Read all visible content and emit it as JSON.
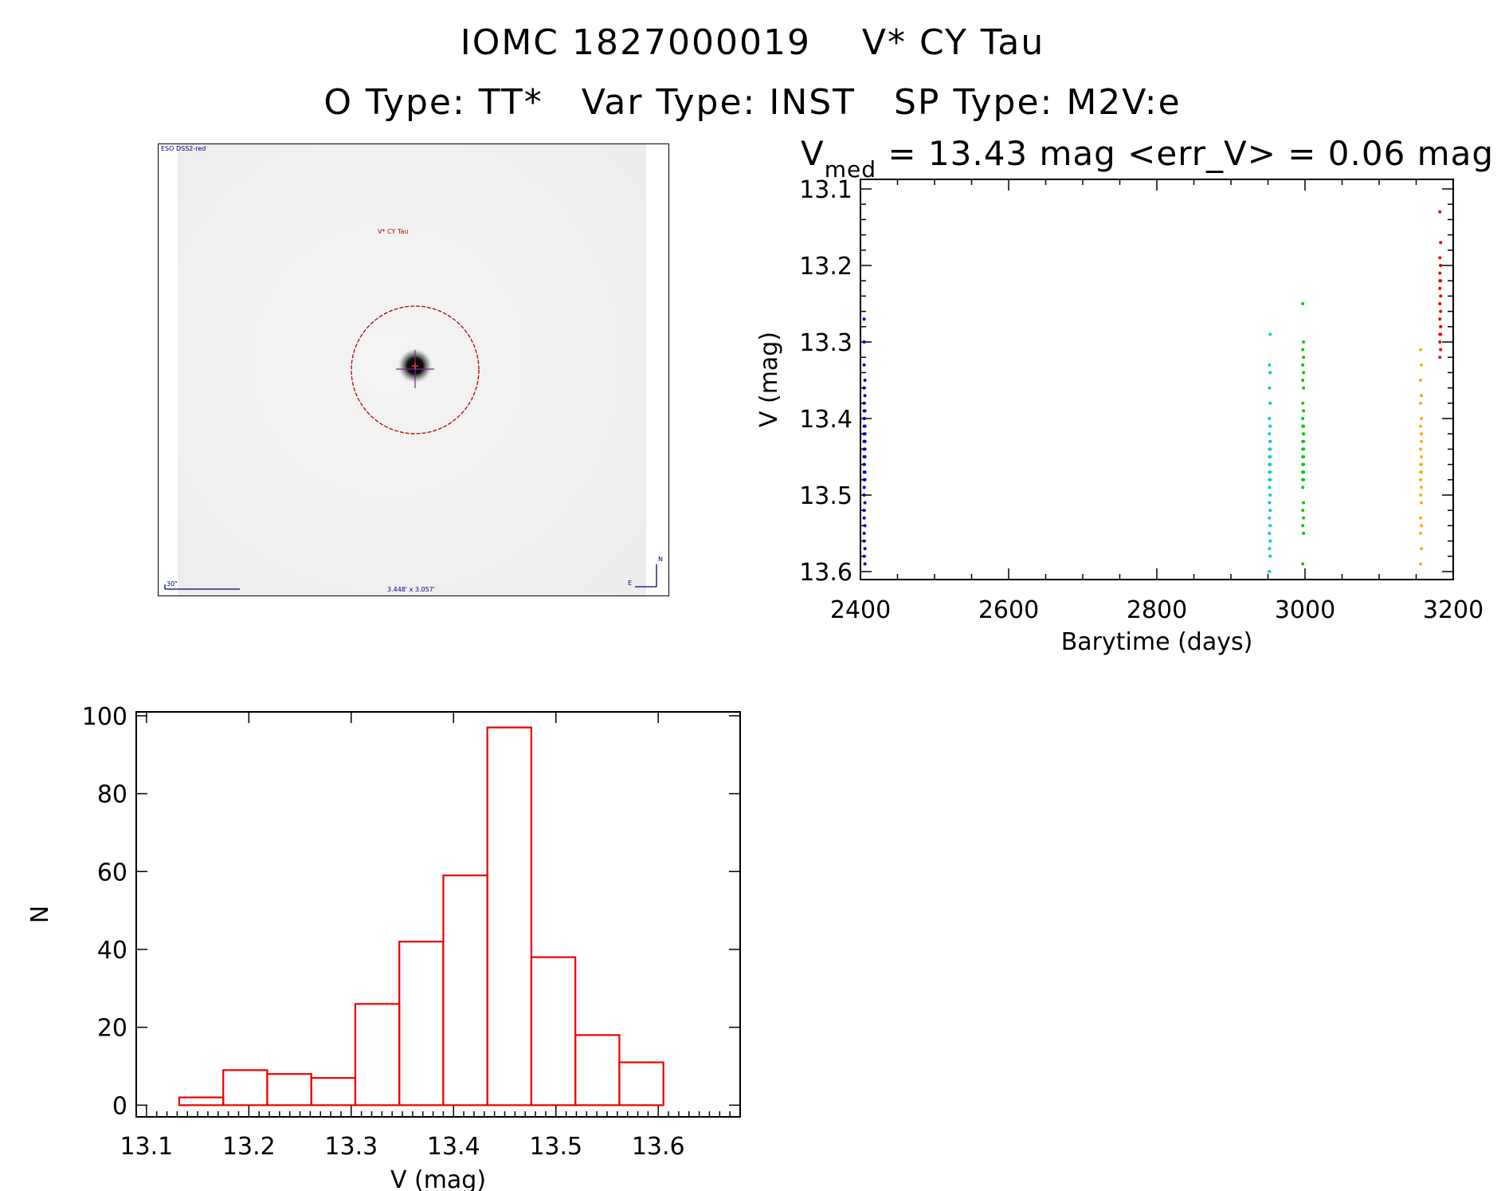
{
  "header": {
    "line1": "IOMC 1827000019    V* CY Tau",
    "line2": "O Type: TT*   Var Type: INST   SP Type: M2V:e"
  },
  "thumbnail": {
    "survey_label": "ESO DSS2-red",
    "object_label": "V* CY Tau",
    "scale_label": "30\"",
    "size_label": "3.448' x 3.057'",
    "compass_n": "N",
    "compass_e": "E",
    "circle_color": "#b00000",
    "crosshair_color": "#7a2a8a"
  },
  "chart_data": [
    {
      "type": "scatter",
      "title_prefix": "V",
      "title_sub": "med",
      "title_rest": " = 13.43 mag <err_V> = 0.06 mag",
      "xlabel": "Barytime (days)",
      "ylabel": "V (mag)",
      "xlim": [
        2400,
        3200
      ],
      "ylim": [
        13.6,
        13.1
      ],
      "y_inverted": true,
      "xticks": [
        "2400",
        "2600",
        "2800",
        "3000",
        "3200"
      ],
      "yticks": [
        "13.1",
        "13.2",
        "13.3",
        "13.4",
        "13.5",
        "13.6"
      ],
      "series": [
        {
          "color": "#0000cc",
          "x": [
            2405,
            2405,
            2405,
            2406,
            2405,
            2406,
            2405,
            2405,
            2406,
            2405,
            2405,
            2406,
            2405,
            2405,
            2406,
            2405,
            2406,
            2405,
            2405,
            2406,
            2405,
            2406,
            2405,
            2405,
            2406,
            2405,
            2405,
            2406,
            2405,
            2405,
            2406,
            2405,
            2405,
            2406,
            2405,
            2405,
            2406,
            2405,
            2406,
            2405
          ],
          "y": [
            13.27,
            13.3,
            13.33,
            13.35,
            13.36,
            13.37,
            13.38,
            13.39,
            13.39,
            13.4,
            13.4,
            13.41,
            13.41,
            13.42,
            13.42,
            13.43,
            13.43,
            13.43,
            13.44,
            13.44,
            13.45,
            13.45,
            13.46,
            13.46,
            13.47,
            13.47,
            13.48,
            13.48,
            13.49,
            13.5,
            13.51,
            13.52,
            13.53,
            13.54,
            13.55,
            13.56,
            13.57,
            13.58,
            13.59,
            13.45
          ]
        },
        {
          "color": "#00cccc",
          "x": [
            2953,
            2952,
            2953,
            2952,
            2953,
            2952,
            2953,
            2952,
            2953,
            2952,
            2953,
            2952,
            2953,
            2952,
            2953,
            2952,
            2953,
            2952,
            2953,
            2952,
            2953,
            2952,
            2953,
            2952,
            2953,
            2952,
            2953,
            2952,
            2953,
            2952,
            2953,
            2952
          ],
          "y": [
            13.29,
            13.33,
            13.34,
            13.36,
            13.38,
            13.4,
            13.41,
            13.42,
            13.43,
            13.44,
            13.44,
            13.45,
            13.45,
            13.46,
            13.46,
            13.47,
            13.47,
            13.48,
            13.48,
            13.49,
            13.5,
            13.51,
            13.52,
            13.53,
            13.54,
            13.55,
            13.56,
            13.57,
            13.58,
            13.6,
            13.43,
            13.46
          ]
        },
        {
          "color": "#00cc00",
          "x": [
            2997,
            2998,
            2997,
            2998,
            2997,
            2998,
            2997,
            2998,
            2997,
            2998,
            2997,
            2998,
            2997,
            2998,
            2997,
            2998,
            2997,
            2998,
            2997,
            2998,
            2997,
            2998,
            2997,
            2998,
            2997,
            2998,
            2997,
            2998,
            2997,
            2998,
            2997,
            2998,
            2997,
            2998
          ],
          "y": [
            13.25,
            13.3,
            13.31,
            13.32,
            13.33,
            13.34,
            13.35,
            13.36,
            13.38,
            13.39,
            13.4,
            13.41,
            13.41,
            13.42,
            13.43,
            13.43,
            13.44,
            13.44,
            13.45,
            13.45,
            13.46,
            13.46,
            13.47,
            13.47,
            13.48,
            13.48,
            13.49,
            13.51,
            13.52,
            13.53,
            13.54,
            13.55,
            13.59,
            13.42
          ]
        },
        {
          "color": "#ffb000",
          "x": [
            3156,
            3157,
            3156,
            3157,
            3156,
            3157,
            3156,
            3157,
            3156,
            3157,
            3156,
            3157,
            3156,
            3157,
            3156,
            3157,
            3156,
            3157,
            3156,
            3157,
            3156,
            3157,
            3156,
            3157
          ],
          "y": [
            13.31,
            13.33,
            13.35,
            13.37,
            13.38,
            13.4,
            13.41,
            13.42,
            13.44,
            13.45,
            13.46,
            13.46,
            13.47,
            13.47,
            13.48,
            13.49,
            13.5,
            13.51,
            13.53,
            13.54,
            13.55,
            13.57,
            13.59,
            13.43
          ]
        },
        {
          "color": "#ee0000",
          "x": [
            3182,
            3183,
            3182,
            3183,
            3182,
            3183,
            3182,
            3183,
            3182,
            3183,
            3182,
            3183,
            3182,
            3183,
            3182,
            3183,
            3182,
            3183,
            3182,
            3183
          ],
          "y": [
            13.13,
            13.17,
            13.19,
            13.2,
            13.21,
            13.22,
            13.23,
            13.24,
            13.25,
            13.26,
            13.27,
            13.28,
            13.29,
            13.29,
            13.3,
            13.31,
            13.32,
            13.2,
            13.22,
            13.28
          ]
        }
      ]
    },
    {
      "type": "bar",
      "xlabel": "V (mag)",
      "ylabel": "N",
      "xlim": [
        13.09,
        13.68
      ],
      "ylim": [
        -3,
        101
      ],
      "xticks": [
        "13.1",
        "13.2",
        "13.3",
        "13.4",
        "13.5",
        "13.6"
      ],
      "yticks": [
        "0",
        "20",
        "40",
        "60",
        "80",
        "100"
      ],
      "bar_color": "#ee0000",
      "bins": [
        {
          "left": 13.132,
          "right": 13.175,
          "value": 2
        },
        {
          "left": 13.175,
          "right": 13.218,
          "value": 9
        },
        {
          "left": 13.218,
          "right": 13.261,
          "value": 8
        },
        {
          "left": 13.261,
          "right": 13.304,
          "value": 7
        },
        {
          "left": 13.304,
          "right": 13.347,
          "value": 26
        },
        {
          "left": 13.347,
          "right": 13.39,
          "value": 42
        },
        {
          "left": 13.39,
          "right": 13.433,
          "value": 59
        },
        {
          "left": 13.433,
          "right": 13.476,
          "value": 97
        },
        {
          "left": 13.476,
          "right": 13.519,
          "value": 38
        },
        {
          "left": 13.519,
          "right": 13.562,
          "value": 18
        },
        {
          "left": 13.562,
          "right": 13.605,
          "value": 11
        }
      ]
    }
  ]
}
